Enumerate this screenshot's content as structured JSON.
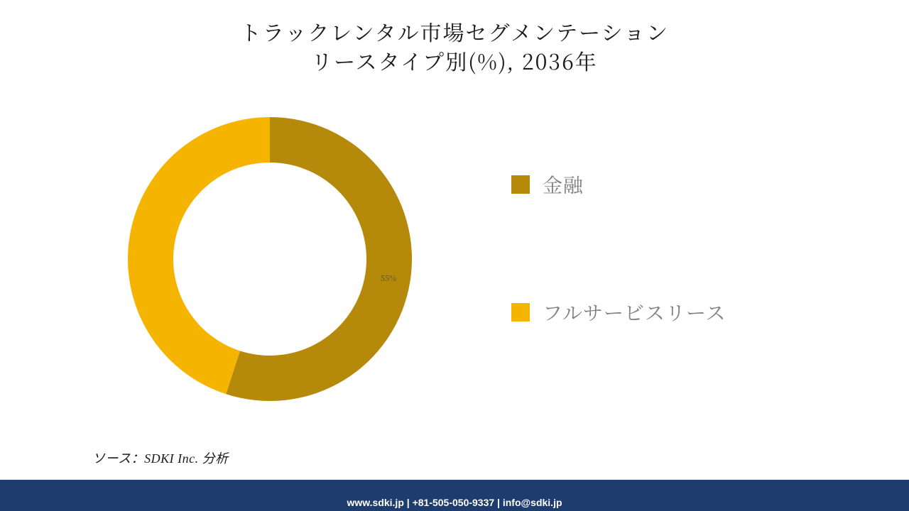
{
  "title": {
    "line1": "トラックレンタル市場セグメンテーション",
    "line2": "リースタイプ別(%), 2036年",
    "fontsize": 30,
    "color": "#1a1a1a"
  },
  "chart": {
    "type": "donut",
    "outer_radius": 200,
    "inner_radius": 136,
    "start_angle_deg": 0,
    "background_color": "#ffffff",
    "slices": [
      {
        "label": "金融",
        "value": 55,
        "color": "#b58a0a",
        "show_value_label": true
      },
      {
        "label": "フルサービスリース",
        "value": 45,
        "color": "#f5b400",
        "show_value_label": false
      }
    ],
    "value_label_fontsize": 11,
    "value_label_color": "#4d4d4d"
  },
  "legend": {
    "items": [
      {
        "label": "金融",
        "color": "#b58a0a"
      },
      {
        "label": "フルサービスリース",
        "color": "#f5b400"
      }
    ],
    "fontsize": 28,
    "label_color": "#808080",
    "swatch_size": 26
  },
  "source": {
    "text": "ソース：SDKI Inc. 分析",
    "fontsize": 18
  },
  "footer": {
    "band_color": "#1f3c6e",
    "text": "www.sdki.jp | +81-505-050-9337 | info@sdki.jp",
    "text_bg": "#1f3c6e",
    "text_color": "#ffffff"
  }
}
